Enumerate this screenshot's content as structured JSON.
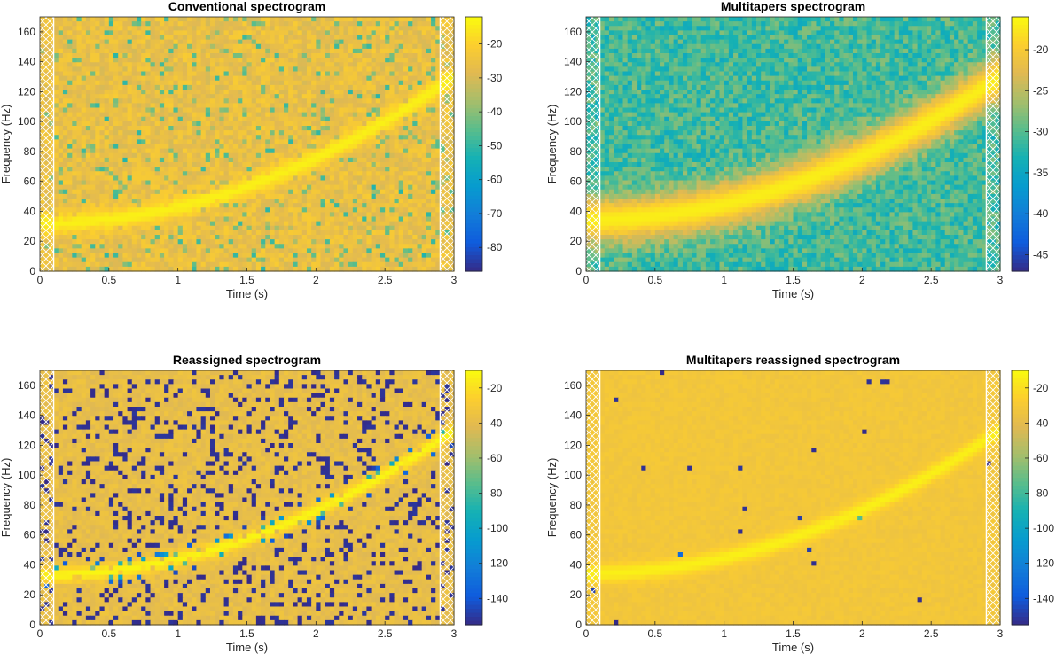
{
  "chart_data": [
    {
      "type": "heatmap",
      "title": "Conventional spectrogram",
      "xlabel": "Time (s)",
      "ylabel": "Frequency (Hz)",
      "xlim": [
        0,
        3
      ],
      "ylim": [
        0,
        170
      ],
      "xticks": [
        0,
        0.5,
        1,
        1.5,
        2,
        2.5,
        3
      ],
      "xtick_labels": [
        "0",
        "0.5",
        "1",
        "1.5",
        "2",
        "2.5",
        "3"
      ],
      "yticks": [
        0,
        20,
        40,
        60,
        80,
        100,
        120,
        140,
        160
      ],
      "ytick_labels": [
        "0",
        "20",
        "40",
        "60",
        "80",
        "100",
        "120",
        "140",
        "160"
      ],
      "clim": [
        -87,
        -12
      ],
      "colorbar_ticks": [
        -20,
        -30,
        -40,
        -50,
        -60,
        -70,
        -80
      ],
      "colorbar_labels": [
        "-20",
        "-30",
        "-40",
        "-50",
        "-60",
        "-70",
        "-80"
      ],
      "colormap": "parula",
      "ridge": {
        "freq_start_hz": 32,
        "freq_end_hz": 130,
        "level": -14
      },
      "background_level": -26,
      "edge_hatch_time_s": 0.1
    },
    {
      "type": "heatmap",
      "title": "Multitapers spectrogram",
      "xlabel": "Time (s)",
      "ylabel": "Frequency (Hz)",
      "xlim": [
        0,
        3
      ],
      "ylim": [
        0,
        170
      ],
      "xticks": [
        0,
        0.5,
        1,
        1.5,
        2,
        2.5,
        3
      ],
      "xtick_labels": [
        "0",
        "0.5",
        "1",
        "1.5",
        "2",
        "2.5",
        "3"
      ],
      "yticks": [
        0,
        20,
        40,
        60,
        80,
        100,
        120,
        140,
        160
      ],
      "ytick_labels": [
        "0",
        "20",
        "40",
        "60",
        "80",
        "100",
        "120",
        "140",
        "160"
      ],
      "clim": [
        -47,
        -16
      ],
      "colorbar_ticks": [
        -20,
        -25,
        -30,
        -35,
        -40,
        -45
      ],
      "colorbar_labels": [
        "-20",
        "-25",
        "-30",
        "-35",
        "-40",
        "-45"
      ],
      "colormap": "parula",
      "ridge": {
        "freq_start_hz": 34,
        "freq_end_hz": 130,
        "level": -17
      },
      "background_level": -31,
      "edge_hatch_time_s": 0.1
    },
    {
      "type": "heatmap",
      "title": "Reassigned spectrogram",
      "xlabel": "Time (s)",
      "ylabel": "Frequency (Hz)",
      "xlim": [
        0,
        3
      ],
      "ylim": [
        0,
        170
      ],
      "xticks": [
        0,
        0.5,
        1,
        1.5,
        2,
        2.5,
        3
      ],
      "xtick_labels": [
        "0",
        "0.5",
        "1",
        "1.5",
        "2",
        "2.5",
        "3"
      ],
      "yticks": [
        0,
        20,
        40,
        60,
        80,
        100,
        120,
        140,
        160
      ],
      "ytick_labels": [
        "0",
        "20",
        "40",
        "60",
        "80",
        "100",
        "120",
        "140",
        "160"
      ],
      "clim": [
        -155,
        -10
      ],
      "colorbar_ticks": [
        -20,
        -40,
        -60,
        -80,
        -100,
        -120,
        -140
      ],
      "colorbar_labels": [
        "-20",
        "-40",
        "-60",
        "-80",
        "-100",
        "-120",
        "-140"
      ],
      "colormap": "parula",
      "ridge": {
        "freq_start_hz": 33,
        "freq_end_hz": 130,
        "level": -12
      },
      "background_level": -38,
      "edge_hatch_time_s": 0.1
    },
    {
      "type": "heatmap",
      "title": "Multitapers reassigned spectrogram",
      "xlabel": "Time (s)",
      "ylabel": "Frequency (Hz)",
      "xlim": [
        0,
        3
      ],
      "ylim": [
        0,
        170
      ],
      "xticks": [
        0,
        0.5,
        1,
        1.5,
        2,
        2.5,
        3
      ],
      "xtick_labels": [
        "0",
        "0.5",
        "1",
        "1.5",
        "2",
        "2.5",
        "3"
      ],
      "yticks": [
        0,
        20,
        40,
        60,
        80,
        100,
        120,
        140,
        160
      ],
      "ytick_labels": [
        "0",
        "20",
        "40",
        "60",
        "80",
        "100",
        "120",
        "140",
        "160"
      ],
      "clim": [
        -155,
        -10
      ],
      "colorbar_ticks": [
        -20,
        -40,
        -60,
        -80,
        -100,
        -120,
        -140
      ],
      "colorbar_labels": [
        "-20",
        "-40",
        "-60",
        "-80",
        "-100",
        "-120",
        "-140"
      ],
      "colormap": "parula",
      "ridge": {
        "freq_start_hz": 34,
        "freq_end_hz": 130,
        "level": -14
      },
      "background_level": -32,
      "edge_hatch_time_s": 0.1
    }
  ]
}
